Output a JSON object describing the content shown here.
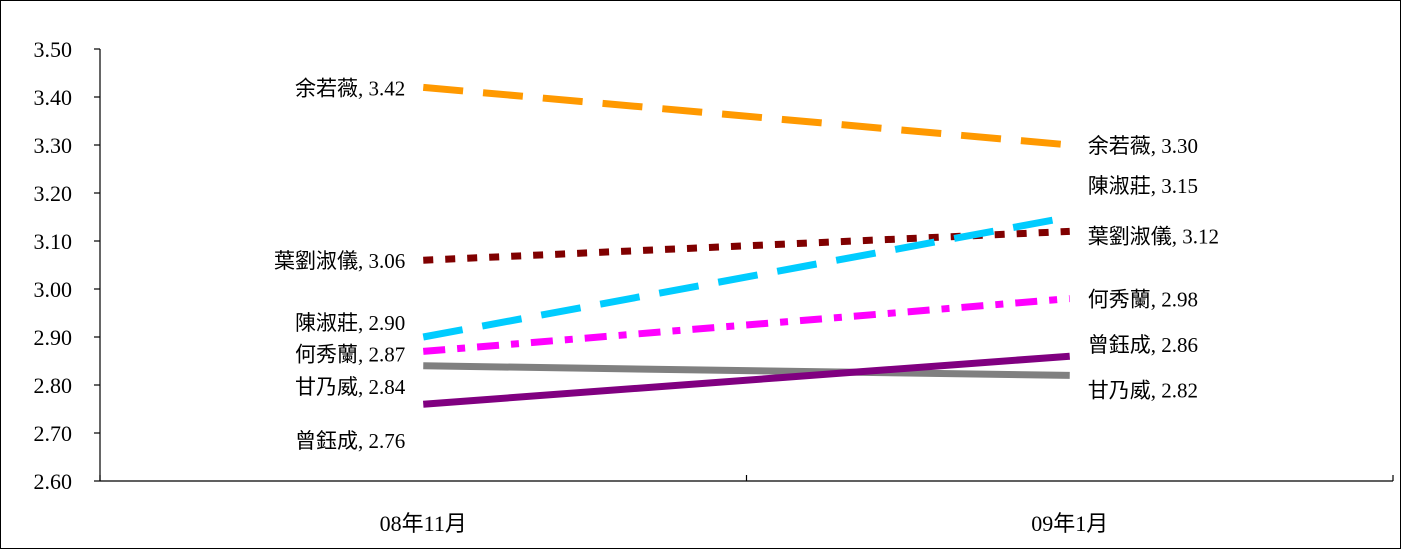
{
  "chart_data": {
    "type": "line",
    "categories": [
      "08年11月",
      "09年1月"
    ],
    "ylim": [
      2.6,
      3.5
    ],
    "yticks": [
      "2.60",
      "2.70",
      "2.80",
      "2.90",
      "3.00",
      "3.10",
      "3.20",
      "3.30",
      "3.40",
      "3.50"
    ],
    "grid": false,
    "legend": "none",
    "series": [
      {
        "name": "余若薇",
        "values": [
          3.42,
          3.3
        ],
        "color": "#FF9900",
        "dash": "long-dash",
        "labels": [
          "余若薇, 3.42",
          "余若薇, 3.30"
        ]
      },
      {
        "name": "葉劉淑儀",
        "values": [
          3.06,
          3.12
        ],
        "color": "#800000",
        "dash": "square-dot",
        "labels": [
          "葉劉淑儀, 3.06",
          "葉劉淑儀, 3.12"
        ]
      },
      {
        "name": "陳淑莊",
        "values": [
          2.9,
          3.15
        ],
        "color": "#00CCFF",
        "dash": "long-dash",
        "labels": [
          "陳淑莊, 2.90",
          "陳淑莊, 3.15"
        ]
      },
      {
        "name": "何秀蘭",
        "values": [
          2.87,
          2.98
        ],
        "color": "#FF00FF",
        "dash": "dash-dot",
        "labels": [
          "何秀蘭, 2.87",
          "何秀蘭, 2.98"
        ]
      },
      {
        "name": "甘乃威",
        "values": [
          2.84,
          2.82
        ],
        "color": "#808080",
        "dash": "solid",
        "labels": [
          "甘乃威, 2.84",
          "甘乃威, 2.82"
        ]
      },
      {
        "name": "曾鈺成",
        "values": [
          2.76,
          2.86
        ],
        "color": "#800080",
        "dash": "solid",
        "labels": [
          "曾鈺成, 2.76",
          "曾鈺成, 2.86"
        ]
      }
    ]
  }
}
